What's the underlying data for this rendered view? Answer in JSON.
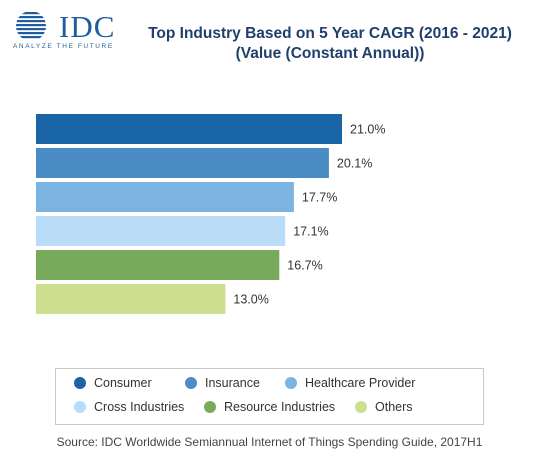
{
  "logo": {
    "name": "IDC",
    "tagline": "ANALYZE THE FUTURE",
    "color": "#1f5e9e"
  },
  "chart_data": {
    "type": "bar",
    "orientation": "horizontal",
    "title_lines": [
      "Top Industry Based on 5 Year CAGR (2016 - 2021)",
      "(Value (Constant Annual))"
    ],
    "categories": [
      "Consumer",
      "Insurance",
      "Healthcare Provider",
      "Cross Industries",
      "Resource Industries",
      "Others"
    ],
    "values": [
      21.0,
      20.1,
      17.7,
      17.1,
      16.7,
      13.0
    ],
    "value_labels": [
      "21.0%",
      "20.1%",
      "17.7%",
      "17.1%",
      "16.7%",
      "13.0%"
    ],
    "colors": [
      "#1a65a6",
      "#4a8cc4",
      "#7bb4e0",
      "#b9dcf8",
      "#77aa5a",
      "#cddf8e"
    ],
    "xlim": [
      0,
      21.0
    ],
    "grid": false,
    "legend_position": "bottom",
    "legend_columns": 3
  },
  "source": "Source: IDC Worldwide Semiannual Internet of Things Spending Guide, 2017H1"
}
